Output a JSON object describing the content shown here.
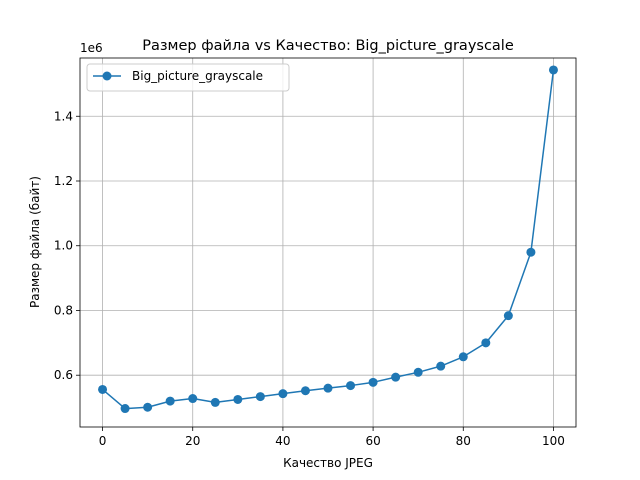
{
  "chart_data": {
    "type": "line",
    "title": "Размер файла vs Качество: Big_picture_grayscale",
    "xlabel": "Качество JPEG",
    "ylabel": "Размер файла (байт)",
    "y_offset_label": "1e6",
    "xlim": [
      -5,
      105
    ],
    "ylim": [
      0.44,
      1.58
    ],
    "x_ticks": [
      0,
      20,
      40,
      60,
      80,
      100
    ],
    "x_tick_labels": [
      "0",
      "20",
      "40",
      "60",
      "80",
      "100"
    ],
    "y_ticks": [
      0.6,
      0.8,
      1.0,
      1.2,
      1.4
    ],
    "y_tick_labels": [
      "0.6",
      "0.8",
      "1.0",
      "1.2",
      "1.4"
    ],
    "y_scale_note": "values in units of 1e6 bytes",
    "grid": true,
    "legend_position": "top-left",
    "series": [
      {
        "name": "Big_picture_grayscale",
        "color": "#1f77b4",
        "marker": "circle",
        "x": [
          0,
          5,
          10,
          15,
          20,
          25,
          30,
          35,
          40,
          45,
          50,
          55,
          60,
          65,
          70,
          75,
          80,
          85,
          90,
          95,
          100
        ],
        "y": [
          0.556,
          0.497,
          0.501,
          0.52,
          0.528,
          0.516,
          0.525,
          0.534,
          0.543,
          0.552,
          0.56,
          0.568,
          0.578,
          0.594,
          0.609,
          0.628,
          0.657,
          0.7,
          0.784,
          0.98,
          1.543
        ]
      }
    ]
  }
}
